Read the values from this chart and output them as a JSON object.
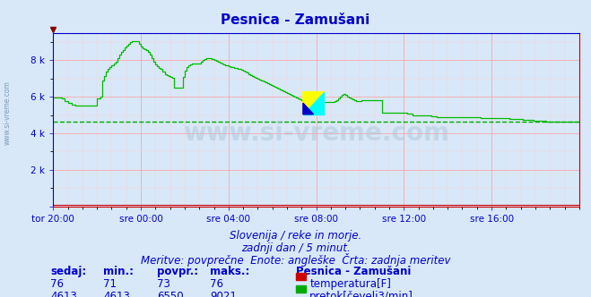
{
  "title": "Pesnica - Zamušani",
  "bg_color": "#d8e8f8",
  "title_color": "#0000cc",
  "title_fontsize": 11,
  "grid_color_major": "#ff9999",
  "grid_color_minor": "#ffcccc",
  "xlabel_ticks": [
    "tor 20:00",
    "sre 00:00",
    "sre 04:00",
    "sre 08:00",
    "sre 12:00",
    "sre 16:00"
  ],
  "xlabel_tick_positions": [
    0,
    48,
    96,
    144,
    192,
    240
  ],
  "yticks": [
    0,
    2000,
    4000,
    6000,
    8000
  ],
  "ytick_labels": [
    "",
    "2 k",
    "4 k",
    "6 k",
    "8 k"
  ],
  "ylim": [
    0,
    9500
  ],
  "xlim": [
    0,
    288
  ],
  "axis_color": "#0000cc",
  "tick_color": "#0000cc",
  "tick_fontsize": 7.5,
  "footer_lines": [
    "Slovenija / reke in morje.",
    "zadnji dan / 5 minut.",
    "Meritve: povprečne  Enote: angleške  Črta: zadnja meritev"
  ],
  "footer_color": "#0000cc",
  "footer_fontsize": 8.5,
  "legend_title": "Pesnica - Zamušani",
  "legend_entries": [
    {
      "label": "temperatura[F]",
      "color": "#cc0000"
    },
    {
      "label": "pretok[čevelj3/min]",
      "color": "#00aa00"
    }
  ],
  "table_headers": [
    "sedaj:",
    "min.:",
    "povpr.:",
    "maks.:"
  ],
  "table_row1": [
    "76",
    "71",
    "73",
    "76"
  ],
  "table_row2": [
    "4613",
    "4613",
    "6550",
    "9021"
  ],
  "table_color": "#0000cc",
  "table_fontsize": 8.5,
  "watermark": "www.si-vreme.com",
  "watermark_color": "#aec6d8",
  "left_label": "www.si-vreme.com",
  "left_label_color": "#7a9ab5",
  "temp_color": "#cc0000",
  "flow_color": "#00bb00",
  "flow_avg_color": "#00aa00",
  "flow_avg_value": 4613,
  "flow_data": [
    5950,
    5950,
    5950,
    5950,
    5950,
    5900,
    5750,
    5750,
    5650,
    5650,
    5550,
    5550,
    5500,
    5500,
    5500,
    5500,
    5500,
    5500,
    5500,
    5500,
    5500,
    5500,
    5500,
    5500,
    5900,
    5900,
    6000,
    6900,
    7150,
    7350,
    7500,
    7600,
    7700,
    7800,
    7900,
    8100,
    8300,
    8450,
    8550,
    8700,
    8800,
    8900,
    9000,
    9050,
    9050,
    9050,
    9050,
    8900,
    8750,
    8650,
    8600,
    8550,
    8450,
    8300,
    8100,
    7900,
    7750,
    7650,
    7550,
    7500,
    7350,
    7250,
    7200,
    7150,
    7100,
    7050,
    6500,
    6500,
    6500,
    6500,
    6500,
    7100,
    7400,
    7600,
    7700,
    7750,
    7800,
    7800,
    7800,
    7800,
    7800,
    7900,
    8000,
    8050,
    8100,
    8100,
    8100,
    8050,
    8000,
    7950,
    7900,
    7850,
    7800,
    7750,
    7700,
    7700,
    7650,
    7600,
    7600,
    7550,
    7550,
    7500,
    7500,
    7450,
    7400,
    7350,
    7300,
    7250,
    7200,
    7150,
    7100,
    7050,
    7000,
    6950,
    6900,
    6850,
    6800,
    6750,
    6700,
    6650,
    6600,
    6550,
    6500,
    6450,
    6400,
    6350,
    6300,
    6250,
    6200,
    6150,
    6100,
    6050,
    6000,
    5950,
    5900,
    5850,
    5800,
    5750,
    5750,
    5900,
    5850,
    5850,
    5800,
    5800,
    5800,
    5750,
    5750,
    5700,
    5700,
    5700,
    5700,
    5700,
    5700,
    5700,
    5750,
    5800,
    5900,
    6000,
    6100,
    6150,
    6100,
    6000,
    5950,
    5900,
    5850,
    5800,
    5750,
    5750,
    5750,
    5800,
    5800,
    5800,
    5800,
    5800,
    5800,
    5800,
    5800,
    5800,
    5800,
    5800,
    5100,
    5100,
    5100,
    5100,
    5100,
    5100,
    5100,
    5100,
    5100,
    5100,
    5100,
    5100,
    5100,
    5100,
    5050,
    5050,
    5050,
    5000,
    5000,
    5000,
    5000,
    5000,
    5000,
    5000,
    5000,
    5000,
    5000,
    4950,
    4950,
    4950,
    4900,
    4900,
    4900,
    4900,
    4900,
    4900,
    4900,
    4900,
    4900,
    4900,
    4900,
    4900,
    4900,
    4900,
    4900,
    4900,
    4900,
    4900,
    4900,
    4900,
    4900,
    4900,
    4900,
    4900,
    4850,
    4850,
    4850,
    4850,
    4850,
    4850,
    4850,
    4850,
    4850,
    4850,
    4850,
    4850,
    4850,
    4850,
    4850,
    4850,
    4800,
    4800,
    4800,
    4800,
    4800,
    4800,
    4800,
    4750,
    4750,
    4750,
    4750,
    4750,
    4750,
    4700,
    4700,
    4700,
    4700,
    4700,
    4700,
    4700,
    4650,
    4650,
    4650,
    4650,
    4650,
    4650,
    4650,
    4650,
    4650,
    4650,
    4650,
    4650,
    4650,
    4650,
    4650,
    4650,
    4650,
    4650,
    4650
  ],
  "temp_data_flat": 76
}
